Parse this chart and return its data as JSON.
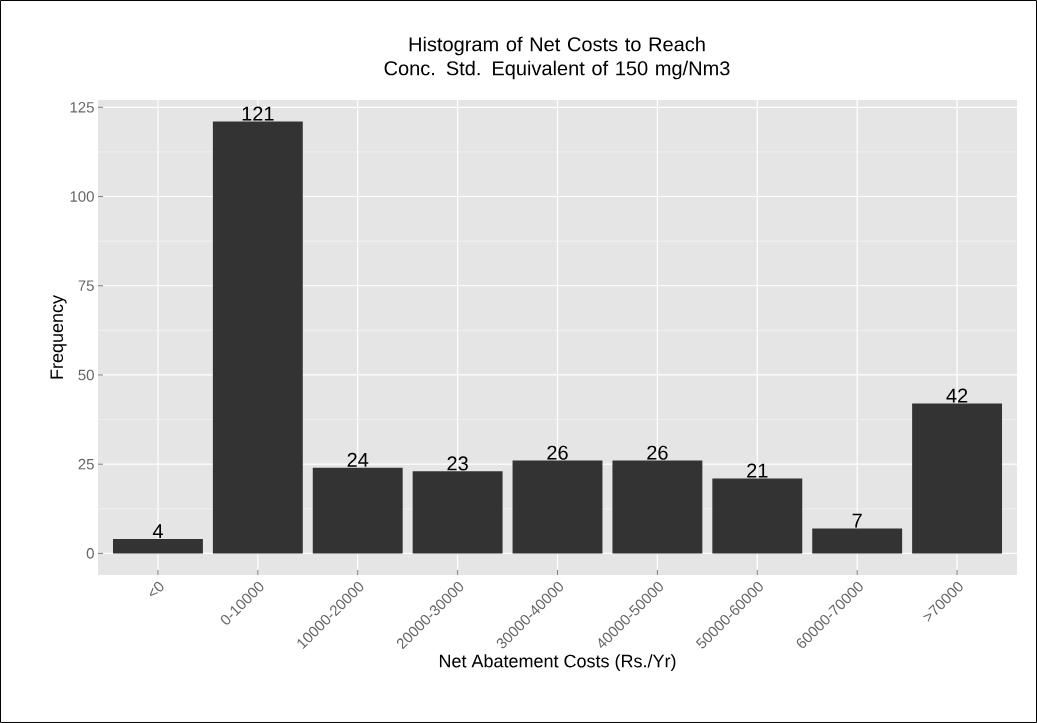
{
  "chart_data": {
    "type": "bar",
    "title": "Histogram of Net Costs to Reach Conc. Std. Equivalent of 150 mg/Nm3",
    "xlabel": "Net Abatement Costs (Rs./Yr)",
    "ylabel": "Frequency",
    "categories": [
      "<0",
      "0-10000",
      "10000-20000",
      "20000-30000",
      "30000-40000",
      "40000-50000",
      "50000-60000",
      "60000-70000",
      ">70000"
    ],
    "values": [
      4,
      121,
      24,
      23,
      26,
      26,
      21,
      7,
      42
    ],
    "color": "#333333",
    "data_labels": true,
    "ylim": [
      -6.05,
      127.05
    ],
    "yticks": [
      0,
      25,
      50,
      75,
      100,
      125
    ],
    "grid": true
  }
}
